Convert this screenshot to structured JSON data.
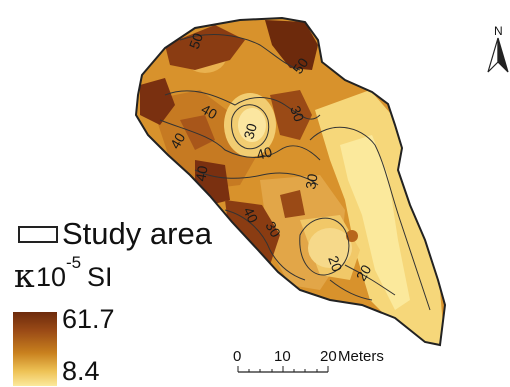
{
  "legend": {
    "study_area_label": "Study area",
    "unit_symbol": "κ",
    "unit_base": "10",
    "unit_exponent": "-5",
    "unit_si": "SI",
    "max_value": "61.7",
    "min_value": "8.4"
  },
  "scale_bar": {
    "ticks": [
      "0",
      "10",
      "20"
    ],
    "unit": "Meters"
  },
  "north_arrow": {
    "label": "N"
  },
  "contour_labels": [
    "50",
    "50",
    "30",
    "40",
    "30",
    "40",
    "40",
    "40",
    "30",
    "40",
    "30",
    "20",
    "20"
  ],
  "colors": {
    "high": "#6d2a0c",
    "mid": "#c8801e",
    "low": "#fbe99c",
    "outline": "#222222"
  }
}
